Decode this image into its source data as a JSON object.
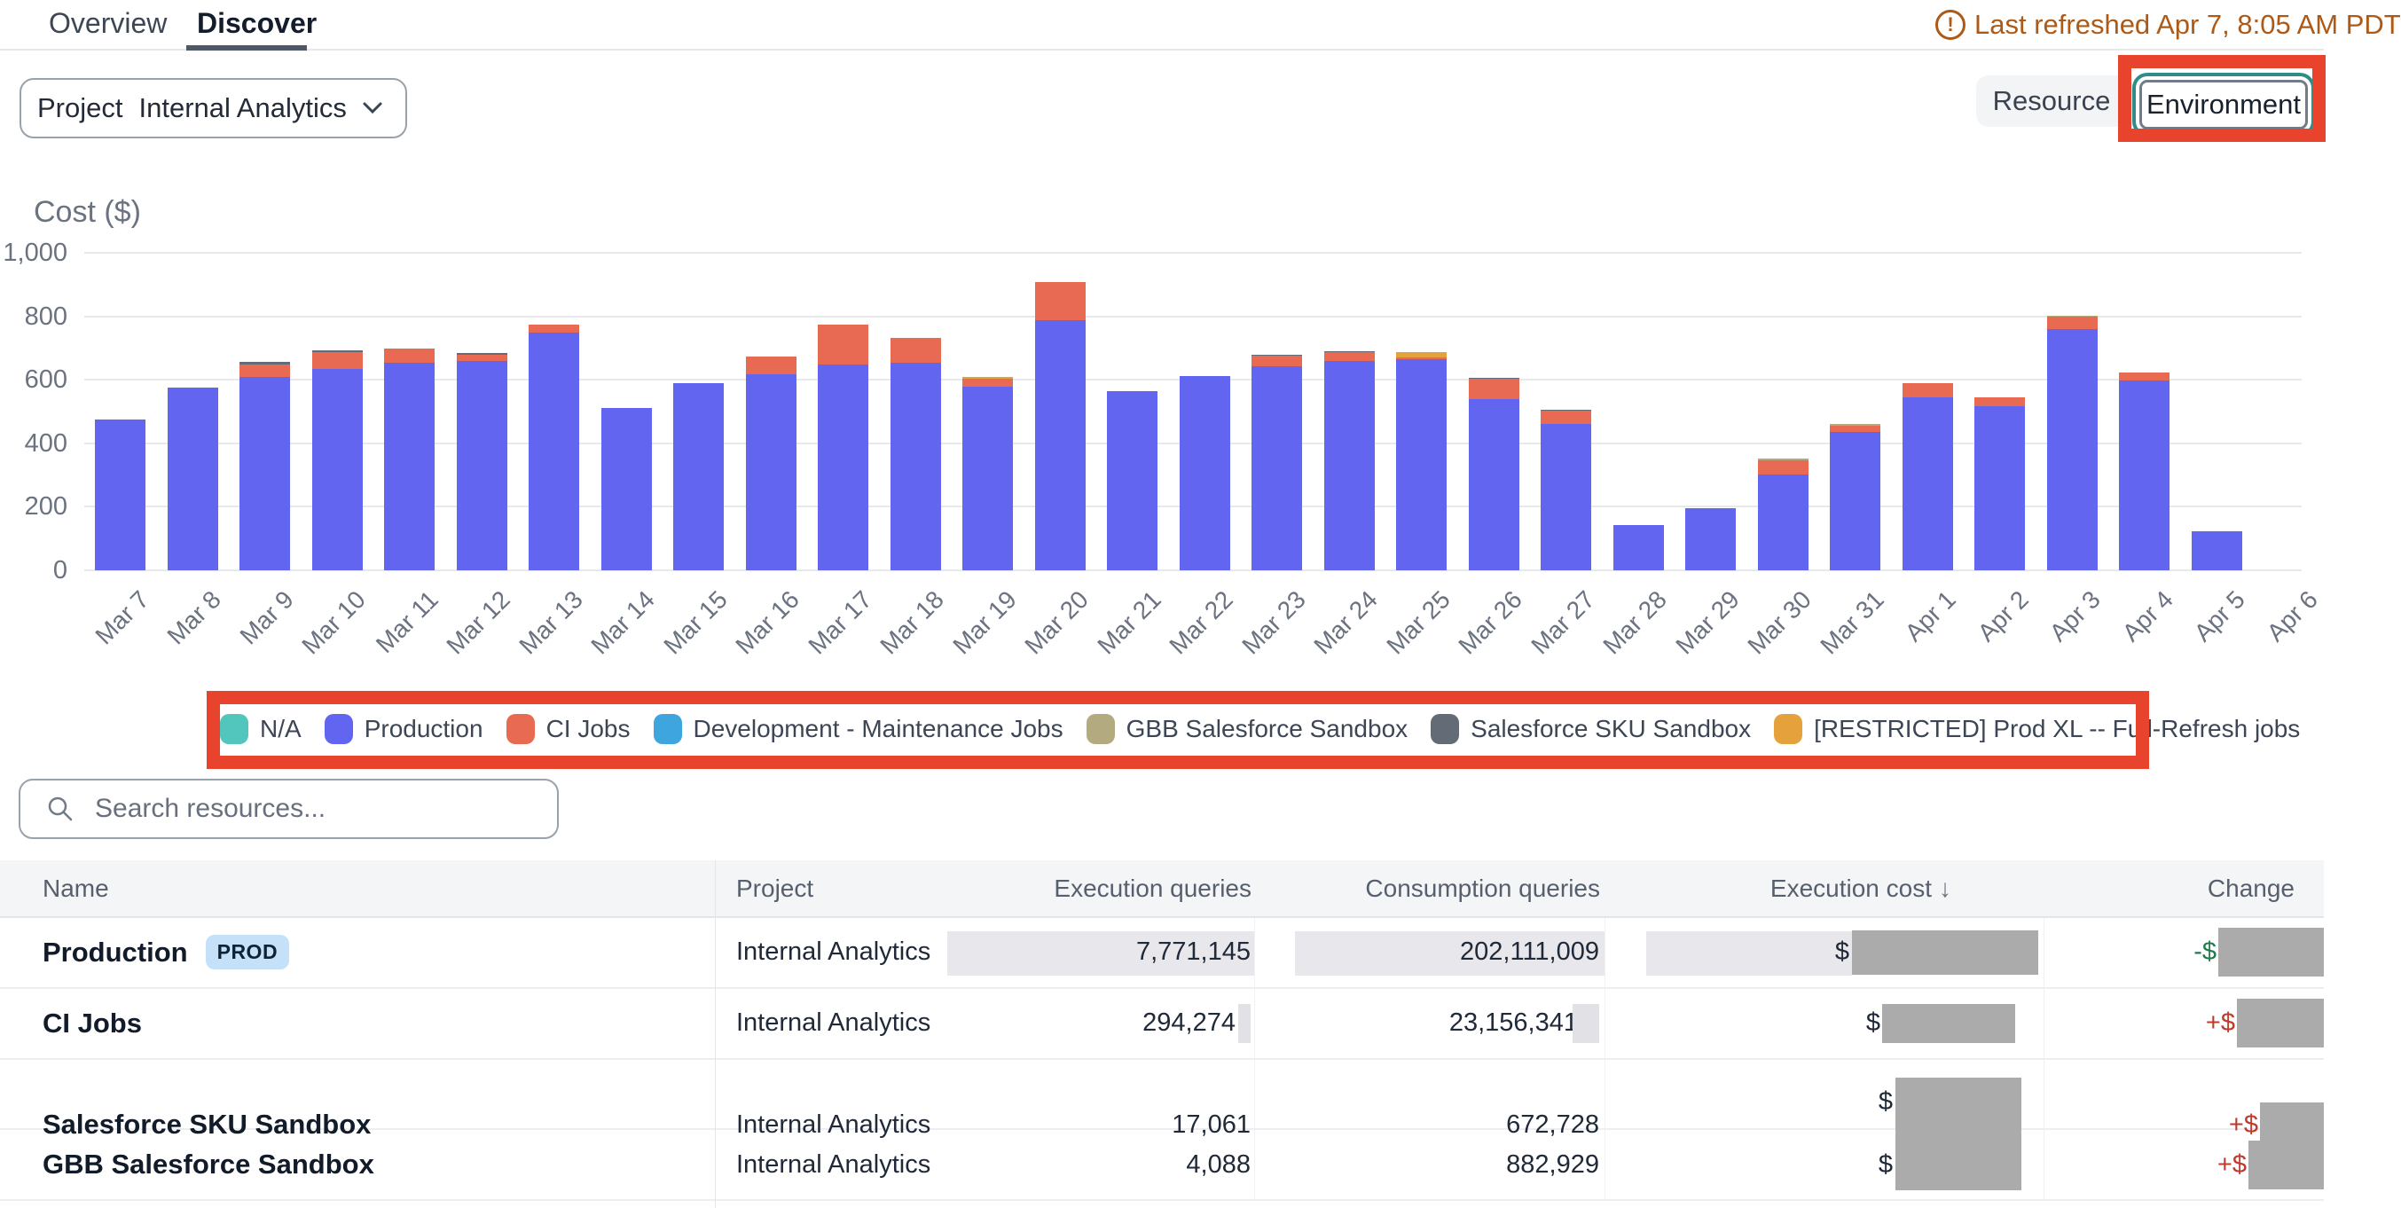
{
  "header": {
    "tabs": [
      {
        "label": "Overview",
        "active": false
      },
      {
        "label": "Discover",
        "active": true
      }
    ],
    "last_refreshed": "Last refreshed Apr 7, 8:05 AM PDT",
    "project_filter": {
      "label": "Project",
      "value": "Internal Analytics"
    },
    "group_toggle": {
      "resource": "Resource",
      "environment": "Environment",
      "selected": "Environment"
    }
  },
  "chart_data": {
    "type": "bar",
    "stacked": true,
    "title": "Cost ($)",
    "ylabel": "Cost ($)",
    "xlabel": "",
    "ylim": [
      0,
      1000
    ],
    "grid": true,
    "legend_position": "bottom",
    "yticks": [
      {
        "value": 0,
        "label": "0"
      },
      {
        "value": 200,
        "label": "200"
      },
      {
        "value": 400,
        "label": "400"
      },
      {
        "value": 600,
        "label": "600"
      },
      {
        "value": 800,
        "label": "800"
      },
      {
        "value": 1000,
        "label": "1,000"
      }
    ],
    "categories": [
      "Mar 7",
      "Mar 8",
      "Mar 9",
      "Mar 10",
      "Mar 11",
      "Mar 12",
      "Mar 13",
      "Mar 14",
      "Mar 15",
      "Mar 16",
      "Mar 17",
      "Mar 18",
      "Mar 19",
      "Mar 20",
      "Mar 21",
      "Mar 22",
      "Mar 23",
      "Mar 24",
      "Mar 25",
      "Mar 26",
      "Mar 27",
      "Mar 28",
      "Mar 29",
      "Mar 30",
      "Mar 31",
      "Apr 1",
      "Apr 2",
      "Apr 3",
      "Apr 4",
      "Apr 5",
      "Apr 6"
    ],
    "series": [
      {
        "name": "Production",
        "color": "#6165ef",
        "values": [
          475,
          575,
          608,
          635,
          655,
          658,
          748,
          512,
          588,
          618,
          648,
          655,
          578,
          788,
          565,
          612,
          642,
          658,
          665,
          538,
          462,
          142,
          195,
          302,
          435,
          545,
          518,
          760,
          598,
          122,
          0
        ]
      },
      {
        "name": "CI Jobs",
        "color": "#e96a52",
        "values": [
          0,
          0,
          40,
          52,
          42,
          22,
          25,
          0,
          0,
          55,
          125,
          78,
          25,
          120,
          0,
          0,
          33,
          28,
          5,
          65,
          40,
          0,
          0,
          45,
          20,
          45,
          28,
          38,
          25,
          0,
          0
        ]
      },
      {
        "name": "Salesforce SKU Sandbox",
        "color": "#636b77",
        "values": [
          0,
          0,
          8,
          6,
          0,
          5,
          0,
          0,
          0,
          0,
          0,
          0,
          0,
          0,
          0,
          0,
          3,
          4,
          0,
          4,
          3,
          0,
          0,
          0,
          0,
          0,
          0,
          0,
          0,
          0,
          0
        ]
      },
      {
        "name": "GBB Salesforce Sandbox",
        "color": "#b4aa7f",
        "values": [
          0,
          0,
          0,
          0,
          0,
          0,
          0,
          0,
          0,
          0,
          0,
          0,
          0,
          0,
          0,
          0,
          0,
          0,
          0,
          0,
          0,
          0,
          0,
          4,
          5,
          0,
          0,
          4,
          0,
          0,
          0
        ]
      },
      {
        "name": "[RESTRICTED] Prod XL -- Full-Refresh jobs",
        "color": "#e5a23c",
        "values": [
          0,
          0,
          0,
          0,
          0,
          0,
          0,
          0,
          0,
          0,
          0,
          0,
          6,
          0,
          0,
          0,
          0,
          0,
          18,
          0,
          0,
          0,
          0,
          0,
          0,
          0,
          0,
          0,
          0,
          0,
          0
        ]
      }
    ],
    "legend": [
      {
        "label": "N/A",
        "color": "#52c5bd"
      },
      {
        "label": "Production",
        "color": "#6165ef"
      },
      {
        "label": "CI Jobs",
        "color": "#e96a52"
      },
      {
        "label": "Development - Maintenance Jobs",
        "color": "#3ea5de"
      },
      {
        "label": "GBB Salesforce Sandbox",
        "color": "#b4aa7f"
      },
      {
        "label": "Salesforce SKU Sandbox",
        "color": "#636b77"
      },
      {
        "label": "[RESTRICTED] Prod XL -- Full-Refresh jobs",
        "color": "#e5a23c"
      }
    ]
  },
  "search": {
    "placeholder": "Search resources..."
  },
  "table": {
    "columns": {
      "name": "Name",
      "project": "Project",
      "execution_queries": "Execution queries",
      "consumption_queries": "Consumption queries",
      "execution_cost": "Execution cost",
      "change": "Change"
    },
    "sort": {
      "column": "Execution cost",
      "direction": "desc",
      "arrow": "↓"
    },
    "rows": [
      {
        "name": "Production",
        "badge": "PROD",
        "project": "Internal Analytics",
        "execution_queries": "7,771,145",
        "consumption_queries": "202,111,009",
        "execution_cost": "$",
        "change_sign": "-$",
        "change_direction": "decrease"
      },
      {
        "name": "CI Jobs",
        "badge": null,
        "project": "Internal Analytics",
        "execution_queries": "294,274",
        "consumption_queries": "23,156,341",
        "execution_cost": "$",
        "change_sign": "+$",
        "change_direction": "increase"
      },
      {
        "name": "Salesforce SKU Sandbox",
        "badge": null,
        "project": "Internal Analytics",
        "execution_queries": "17,061",
        "consumption_queries": "672,728",
        "execution_cost": "$",
        "change_sign": "+$",
        "change_direction": "increase"
      },
      {
        "name": "GBB Salesforce Sandbox",
        "badge": null,
        "project": "Internal Analytics",
        "execution_queries": "4,088",
        "consumption_queries": "882,929",
        "execution_cost": "$",
        "change_sign": "+$",
        "change_direction": "increase"
      }
    ]
  }
}
